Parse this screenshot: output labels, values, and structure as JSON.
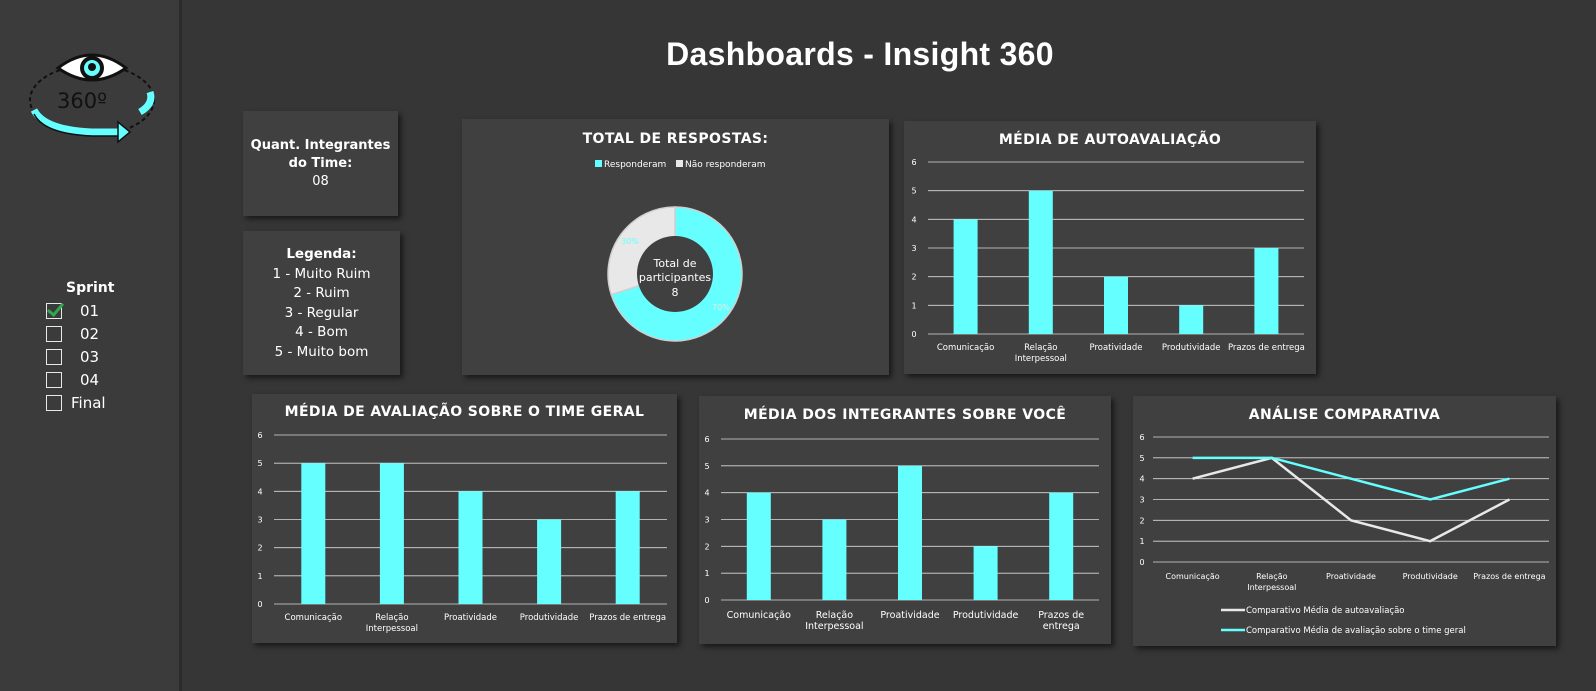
{
  "page": {
    "title": "Dashboards - Insight 360"
  },
  "logo": {
    "text": "360º",
    "icon": "eye-360-icon"
  },
  "sprint": {
    "title": "Sprint",
    "items": [
      {
        "label": "01",
        "checked": true
      },
      {
        "label": "02",
        "checked": false
      },
      {
        "label": "03",
        "checked": false
      },
      {
        "label": "04",
        "checked": false
      },
      {
        "label": "Final",
        "checked": false
      }
    ]
  },
  "members": {
    "label_line1": "Quant. Integrantes",
    "label_line2": "do Time:",
    "value": "08"
  },
  "legend": {
    "title": "Legenda:",
    "items": [
      "1 - Muito Ruim",
      "2 - Ruim",
      "3 - Regular",
      "4 - Bom",
      "5 - Muito bom"
    ]
  },
  "colors": {
    "accent": "#66ffff",
    "gray": "#e8e8e8",
    "card": "#404040",
    "background": "#363636"
  },
  "chart_data": [
    {
      "type": "pie",
      "title": "TOTAL DE RESPOSTAS:",
      "series": [
        {
          "name": "Responderam",
          "value": 70,
          "label": "70%"
        },
        {
          "name": "Não responderam",
          "value": 30,
          "label": "30%"
        }
      ],
      "center_line1": "Total de",
      "center_line2": "participantes",
      "center_value": "8"
    },
    {
      "type": "bar",
      "title": "MÉDIA DE AUTOAVALIAÇÃO",
      "categories": [
        "Comunicação",
        "Relação Interpessoal",
        "Proatividade",
        "Produtividade",
        "Prazos de entrega"
      ],
      "values": [
        4,
        5,
        2,
        1,
        3
      ],
      "ylim": [
        0,
        6
      ]
    },
    {
      "type": "bar",
      "title": "MÉDIA DE AVALIAÇÃO SOBRE O TIME GERAL",
      "categories": [
        "Comunicação",
        "Relação Interpessoal",
        "Proatividade",
        "Produtividade",
        "Prazos de entrega"
      ],
      "values": [
        5,
        5,
        4,
        3,
        4
      ],
      "ylim": [
        0,
        6
      ]
    },
    {
      "type": "bar",
      "title": "MÉDIA DOS INTEGRANTES SOBRE VOCÊ",
      "categories": [
        "Comunicação",
        "Relação Interpessoal",
        "Proatividade",
        "Produtividade",
        "Prazos de entrega"
      ],
      "values": [
        4,
        3,
        5,
        2,
        4
      ],
      "ylim": [
        0,
        6
      ]
    },
    {
      "type": "line",
      "title": "ANÁLISE COMPARATIVA",
      "categories": [
        "Comunicação",
        "Relação Interpessoal",
        "Proatividade",
        "Produtividade",
        "Prazos de entrega"
      ],
      "series": [
        {
          "name": "Comparativo Média de autoavaliação",
          "values": [
            4,
            5,
            2,
            1,
            3
          ]
        },
        {
          "name": "Comparativo Média de avaliação sobre o time geral",
          "values": [
            5,
            5,
            4,
            3,
            4
          ]
        }
      ],
      "ylim": [
        0,
        6
      ]
    }
  ]
}
